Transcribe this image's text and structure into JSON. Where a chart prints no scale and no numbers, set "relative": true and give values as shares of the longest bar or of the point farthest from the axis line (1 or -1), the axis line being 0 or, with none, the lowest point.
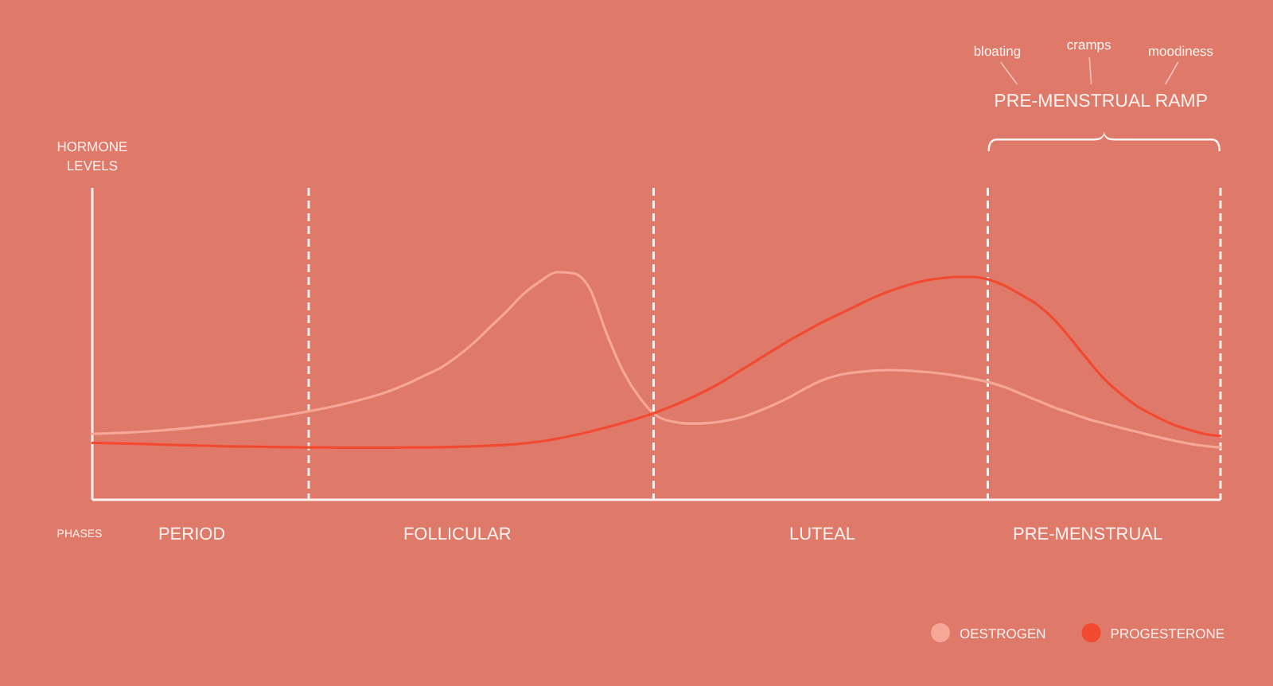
{
  "chart_data": {
    "type": "line",
    "relative": true,
    "xlabel": "PHASES",
    "tick_labels": "x",
    "legend": "bottom right",
    "grid": "x",
    "categories": [
      null,
      null,
      null,
      null,
      null,
      null,
      "PERIOD",
      null,
      null,
      null,
      null,
      null,
      null,
      null,
      null,
      null,
      null,
      null,
      null,
      null,
      null,
      null,
      "FOLLICULAR",
      null,
      null,
      null,
      null,
      null,
      null,
      null,
      null,
      null,
      null,
      null,
      null,
      null,
      null,
      null,
      null,
      null,
      null,
      null,
      null,
      null,
      "LUTEAL",
      null,
      null,
      null,
      null,
      null,
      null,
      null,
      null,
      null,
      null,
      null,
      null,
      null,
      null,
      null,
      "PRE-MENSTRUAL",
      null,
      null,
      null,
      null,
      null,
      null,
      null,
      null
    ],
    "series": [
      {
        "name": "OESTROGEN",
        "color": "#f6a796",
        "values": [
          0.29,
          0.292,
          0.295,
          0.299,
          0.304,
          0.31,
          0.317,
          0.325,
          0.333,
          0.342,
          0.352,
          0.363,
          0.375,
          0.388,
          0.402,
          0.418,
          0.436,
          0.456,
          0.48,
          0.51,
          0.545,
          0.58,
          0.63,
          0.69,
          0.76,
          0.83,
          0.905,
          0.96,
          1,
          0.995,
          0.925,
          0.73,
          0.564,
          0.448,
          0.37,
          0.343,
          0.335,
          0.337,
          0.345,
          0.36,
          0.385,
          0.415,
          0.45,
          0.49,
          0.525,
          0.548,
          0.56,
          0.567,
          0.57,
          0.568,
          0.563,
          0.556,
          0.546,
          0.533,
          0.517,
          0.495,
          0.465,
          0.435,
          0.405,
          0.38,
          0.355,
          0.335,
          0.316,
          0.298,
          0.28,
          0.263,
          0.248,
          0.237,
          0.23
        ]
      },
      {
        "name": "PROGESTERONE",
        "color": "#f24a30",
        "values": [
          0.25,
          0.249,
          0.247,
          0.245,
          0.243,
          0.241,
          0.239,
          0.237,
          0.235,
          0.234,
          0.233,
          0.232,
          0.231,
          0.23,
          0.23,
          0.229,
          0.229,
          0.229,
          0.229,
          0.23,
          0.23,
          0.231,
          0.233,
          0.235,
          0.238,
          0.242,
          0.248,
          0.256,
          0.268,
          0.283,
          0.3,
          0.318,
          0.338,
          0.36,
          0.385,
          0.413,
          0.445,
          0.48,
          0.52,
          0.565,
          0.61,
          0.655,
          0.7,
          0.74,
          0.78,
          0.815,
          0.85,
          0.885,
          0.915,
          0.94,
          0.96,
          0.972,
          0.979,
          0.979,
          0.968,
          0.94,
          0.9,
          0.855,
          0.79,
          0.705,
          0.615,
          0.53,
          0.465,
          0.41,
          0.37,
          0.335,
          0.31,
          0.29,
          0.28
        ]
      }
    ],
    "annotations": [
      "HORMONE LEVELS",
      "bloating",
      "cramps",
      "moodiness",
      "PRE-MENSTRUAL RAMP"
    ]
  }
}
